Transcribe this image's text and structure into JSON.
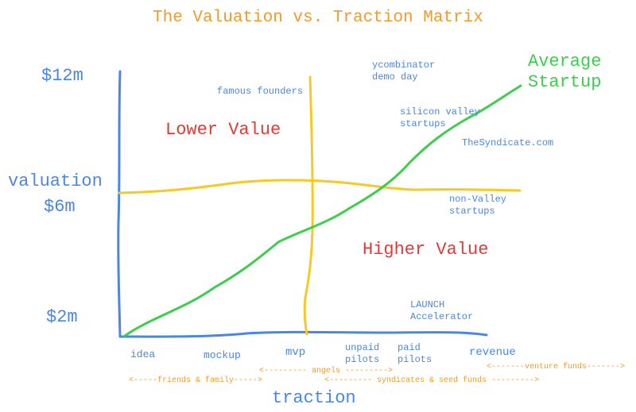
{
  "title": "The Valuation vs. Traction Matrix",
  "y_axis": {
    "label": "valuation",
    "ticks": [
      "$12m",
      "$6m",
      "$2m"
    ]
  },
  "x_axis": {
    "label": "traction",
    "stages": [
      [
        "idea"
      ],
      [
        "mockup"
      ],
      [
        "mvp"
      ],
      [
        "unpaid",
        "pilots"
      ],
      [
        "paid",
        "pilots"
      ],
      [
        "revenue"
      ]
    ]
  },
  "quadrants": [
    "Lower Value",
    "Higher Value"
  ],
  "curve_label": [
    "Average",
    "Startup"
  ],
  "annotations": [
    [
      "famous founders"
    ],
    [
      "ycombinator",
      "demo day"
    ],
    [
      "silicon valley",
      "startups"
    ],
    [
      "TheSyndicate.com"
    ],
    [
      "non-Valley",
      "startups"
    ],
    [
      "LAUNCH",
      "Accelerator"
    ]
  ],
  "funding": [
    "<--------- angels --------->",
    "<-------venture funds------->",
    "<-----friends & family----->",
    "<--------- syndicates & seed funds --------->"
  ]
}
